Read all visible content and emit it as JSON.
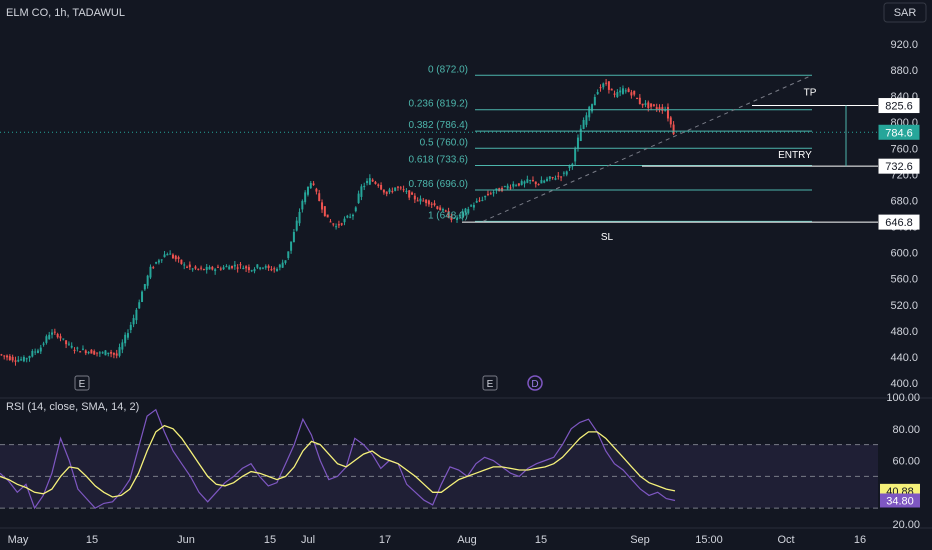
{
  "header": {
    "symbol_title": "ELM CO, 1h, TADAWUL",
    "currency": "SAR"
  },
  "colors": {
    "background": "#131722",
    "up": "#26a69a",
    "down": "#ef5350",
    "fib": "#4db6ac",
    "rsi_line": "#7e57c2",
    "rsi_ma": "#f5f17a",
    "text": "#d1d4dc"
  },
  "chart_data": [
    {
      "type": "candlestick",
      "title": "ELM CO, 1h, TADAWUL",
      "x_tick_labels": [
        "May",
        "15",
        "Jun",
        "15",
        "Jul",
        "17",
        "Aug",
        "15",
        "Sep",
        "15:00",
        "Oct",
        "16"
      ],
      "y_ticks": [
        920,
        880,
        840,
        800,
        760,
        720,
        680,
        640,
        600,
        560,
        520,
        480,
        440,
        400
      ],
      "y_tick_labels": [
        "920.0",
        "880.0",
        "840.0",
        "800.0",
        "760.0",
        "720.0",
        "680.0",
        "640.0",
        "600.0",
        "560.0",
        "520.0",
        "480.0",
        "440.0",
        "400.0"
      ],
      "ylim": [
        390,
        940
      ],
      "price_path": [
        [
          0,
          444
        ],
        [
          1,
          440
        ],
        [
          2,
          436
        ],
        [
          3,
          436
        ],
        [
          4,
          446
        ],
        [
          5,
          455
        ],
        [
          6,
          476
        ],
        [
          7,
          474
        ],
        [
          8,
          460
        ],
        [
          9,
          452
        ],
        [
          10,
          450
        ],
        [
          11,
          448
        ],
        [
          12,
          445
        ],
        [
          13,
          448
        ],
        [
          14,
          442
        ],
        [
          15,
          470
        ],
        [
          16,
          500
        ],
        [
          17,
          540
        ],
        [
          18,
          575
        ],
        [
          19,
          590
        ],
        [
          20,
          600
        ],
        [
          21,
          590
        ],
        [
          22,
          580
        ],
        [
          23,
          575
        ],
        [
          24,
          574
        ],
        [
          25,
          575
        ],
        [
          26,
          576
        ],
        [
          27,
          578
        ],
        [
          28,
          580
        ],
        [
          29,
          578
        ],
        [
          30,
          575
        ],
        [
          31,
          580
        ],
        [
          32,
          575
        ],
        [
          33,
          575
        ],
        [
          34,
          590
        ],
        [
          35,
          630
        ],
        [
          36,
          680
        ],
        [
          37,
          710
        ],
        [
          38,
          680
        ],
        [
          39,
          650
        ],
        [
          40,
          640
        ],
        [
          41,
          650
        ],
        [
          42,
          660
        ],
        [
          43,
          700
        ],
        [
          44,
          712
        ],
        [
          45,
          705
        ],
        [
          46,
          690
        ],
        [
          47,
          700
        ],
        [
          48,
          695
        ],
        [
          49,
          685
        ],
        [
          50,
          680
        ],
        [
          51,
          678
        ],
        [
          52,
          670
        ],
        [
          53,
          660
        ],
        [
          54,
          650
        ],
        [
          55,
          660
        ],
        [
          56,
          672
        ],
        [
          57,
          680
        ],
        [
          58,
          690
        ],
        [
          59,
          695
        ],
        [
          60,
          700
        ],
        [
          61,
          705
        ],
        [
          62,
          706
        ],
        [
          63,
          710
        ],
        [
          64,
          706
        ],
        [
          65,
          712
        ],
        [
          66,
          716
        ],
        [
          67,
          720
        ],
        [
          68,
          740
        ],
        [
          69,
          790
        ],
        [
          70,
          820
        ],
        [
          71,
          850
        ],
        [
          72,
          860
        ],
        [
          73,
          840
        ],
        [
          74,
          850
        ],
        [
          75,
          845
        ],
        [
          76,
          830
        ],
        [
          77,
          825
        ],
        [
          78,
          822
        ],
        [
          79,
          820
        ],
        [
          80,
          784.6
        ]
      ],
      "price_path_note_units": "x = bar index, y = price (SAR)"
    },
    {
      "type": "line",
      "title": "RSI (14, close, SMA, 14, 2)",
      "y_ticks": [
        20,
        40,
        60,
        80,
        100
      ],
      "y_tick_labels": [
        "20.00",
        "40.00",
        "60.00",
        "80.00",
        "100.00"
      ],
      "bands": [
        30,
        50,
        70
      ],
      "ylim": [
        20,
        100
      ],
      "series": [
        {
          "name": "RSI",
          "values": [
            52,
            47,
            40,
            45,
            30,
            38,
            52,
            74,
            60,
            42,
            36,
            30,
            33,
            34,
            40,
            48,
            68,
            88,
            92,
            78,
            66,
            58,
            50,
            40,
            34,
            40,
            46,
            50,
            55,
            58,
            50,
            44,
            46,
            58,
            70,
            86,
            76,
            60,
            48,
            50,
            56,
            74,
            70,
            64,
            55,
            60,
            58,
            45,
            40,
            35,
            32,
            45,
            56,
            54,
            50,
            58,
            62,
            60,
            56,
            52,
            50,
            55,
            58,
            60,
            62,
            70,
            80,
            84,
            86,
            78,
            66,
            58,
            54,
            48,
            42,
            38,
            40,
            36,
            34.8
          ]
        },
        {
          "name": "MA",
          "values": [
            50,
            48,
            45,
            43,
            40,
            39,
            42,
            50,
            56,
            55,
            50,
            44,
            40,
            37,
            38,
            42,
            52,
            66,
            78,
            82,
            80,
            74,
            66,
            58,
            50,
            45,
            44,
            46,
            50,
            53,
            52,
            50,
            48,
            50,
            56,
            66,
            72,
            70,
            64,
            58,
            56,
            60,
            64,
            66,
            62,
            60,
            58,
            54,
            50,
            45,
            40,
            40,
            44,
            48,
            50,
            52,
            54,
            56,
            56,
            55,
            54,
            54,
            55,
            56,
            58,
            62,
            68,
            74,
            78,
            78,
            74,
            68,
            62,
            56,
            50,
            46,
            44,
            42,
            40.88
          ]
        }
      ]
    }
  ],
  "fib_levels": [
    {
      "label": "0 (872.0)",
      "price": 872.0
    },
    {
      "label": "0.236 (819.2)",
      "price": 819.2
    },
    {
      "label": "0.382 (786.4)",
      "price": 786.4
    },
    {
      "label": "0.5 (760.0)",
      "price": 760.0
    },
    {
      "label": "0.618 (733.6)",
      "price": 733.6
    },
    {
      "label": "0.786 (696.0)",
      "price": 696.0
    },
    {
      "label": "1 (648.0)",
      "price": 648.0
    }
  ],
  "annotations": {
    "tp": "TP",
    "entry": "ENTRY",
    "sl": "SL"
  },
  "price_labels": {
    "tp": "825.6",
    "current": "784.6",
    "entry": "732.6",
    "sl": "646.8"
  },
  "rsi_labels": {
    "ma": "40.88",
    "rsi": "34.80"
  },
  "event_markers": [
    {
      "label": "E"
    },
    {
      "label": "E"
    },
    {
      "label": "D"
    }
  ]
}
